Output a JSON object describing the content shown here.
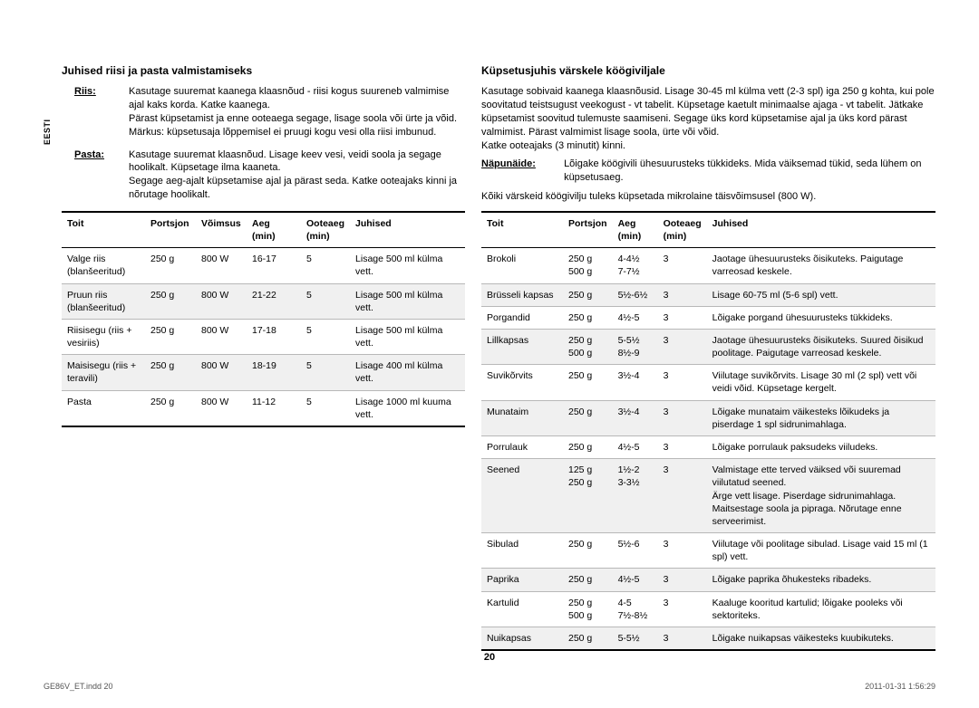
{
  "sidetab": "EESTI",
  "pagenum": "20",
  "footer_left": "GE86V_ET.indd   20",
  "footer_right": "2011-01-31      1:56:29",
  "left": {
    "heading": "Juhised riisi ja pasta valmistamiseks",
    "defs": [
      {
        "term": "Riis:",
        "body": "Kasutage suuremat kaanega klaasnõud - riisi kogus suureneb valmimise ajal kaks korda. Katke kaanega.\nPärast küpsetamist ja enne ooteaega segage, lisage soola või ürte ja võid.\nMärkus: küpsetusaja lõppemisel ei pruugi kogu vesi olla riisi imbunud."
      },
      {
        "term": "Pasta:",
        "body": "Kasutage suuremat klaasnõud. Lisage keev vesi, veidi soola ja segage hoolikalt. Küpsetage ilma kaaneta.\nSegage aeg-ajalt küpsetamise ajal ja pärast seda. Katke ooteajaks kinni ja nõrutage hoolikalt."
      }
    ],
    "table": {
      "columns": [
        "Toit",
        "Portsjon",
        "Võimsus",
        "Aeg (min)",
        "Ooteaeg (min)",
        "Juhised"
      ],
      "rows": [
        {
          "cells": [
            "Valge riis (blanšeeritud)",
            "250 g",
            "800 W",
            "16-17",
            "5",
            "Lisage 500 ml külma vett."
          ],
          "alt": false
        },
        {
          "cells": [
            "Pruun riis (blanšeeritud)",
            "250 g",
            "800 W",
            "21-22",
            "5",
            "Lisage 500 ml külma vett."
          ],
          "alt": true
        },
        {
          "cells": [
            "Riisisegu (riis + vesiriis)",
            "250 g",
            "800 W",
            "17-18",
            "5",
            "Lisage 500 ml külma vett."
          ],
          "alt": false
        },
        {
          "cells": [
            "Maisisegu (riis + teravili)",
            "250 g",
            "800 W",
            "18-19",
            "5",
            "Lisage 400 ml külma vett."
          ],
          "alt": true
        },
        {
          "cells": [
            "Pasta",
            "250 g",
            "800 W",
            "11-12",
            "5",
            "Lisage 1000 ml kuuma vett."
          ],
          "alt": false
        }
      ]
    }
  },
  "right": {
    "heading": "Küpsetusjuhis värskele köögiviljale",
    "body": "Kasutage sobivaid kaanega klaasnõusid. Lisage 30-45 ml külma vett (2-3 spl) iga 250 g kohta, kui pole soovitatud teistsugust veekogust - vt tabelit. Küpsetage kaetult minimaalse ajaga - vt tabelit. Jätkake küpsetamist soovitud tulemuste saamiseni. Segage üks kord küpsetamise ajal ja üks kord pärast valmimist. Pärast valmimist lisage soola, ürte või võid.\nKatke ooteajaks (3 minutit) kinni.",
    "hint_term": "Näpunäide:",
    "hint_body": "Lõigake köögivili ühesuurusteks tükkideks. Mida väiksemad tükid, seda lühem on küpsetusaeg.",
    "note": "Kõiki värskeid köögivilju tuleks küpsetada mikrolaine täisvõimsusel (800 W).",
    "table": {
      "columns": [
        "Toit",
        "Portsjon",
        "Aeg (min)",
        "Ooteaeg (min)",
        "Juhised"
      ],
      "rows": [
        {
          "cells": [
            "Brokoli",
            "250 g\n500 g",
            "4-4½\n7-7½",
            "3",
            "Jaotage ühesuurusteks õisikuteks. Paigutage varreosad keskele."
          ],
          "alt": false
        },
        {
          "cells": [
            "Brüsseli kapsas",
            "250 g",
            "5½-6½",
            "3",
            "Lisage 60-75 ml (5-6 spl) vett."
          ],
          "alt": true
        },
        {
          "cells": [
            "Porgandid",
            "250 g",
            "4½-5",
            "3",
            "Lõigake porgand ühesuurusteks tükkideks."
          ],
          "alt": false
        },
        {
          "cells": [
            "Lillkapsas",
            "250 g\n500 g",
            "5-5½\n8½-9",
            "3",
            "Jaotage ühesuurusteks õisikuteks. Suured õisikud poolitage. Paigutage varreosad keskele."
          ],
          "alt": true
        },
        {
          "cells": [
            "Suvikõrvits",
            "250 g",
            "3½-4",
            "3",
            "Viilutage suvikõrvits. Lisage 30 ml (2 spl) vett või veidi võid. Küpsetage kergelt."
          ],
          "alt": false
        },
        {
          "cells": [
            "Munataim",
            "250 g",
            "3½-4",
            "3",
            "Lõigake munataim väikesteks lõikudeks ja piserdage 1 spl sidrunimahlaga."
          ],
          "alt": true
        },
        {
          "cells": [
            "Porrulauk",
            "250 g",
            "4½-5",
            "3",
            "Lõigake porrulauk paksudeks viiludeks."
          ],
          "alt": false
        },
        {
          "cells": [
            "Seened",
            "125 g\n250 g",
            "1½-2\n3-3½",
            "3",
            "Valmistage ette terved väiksed või suuremad viilutatud seened.\nÄrge vett lisage. Piserdage sidrunimahlaga. Maitsestage soola ja pipraga. Nõrutage enne serveerimist."
          ],
          "alt": true
        },
        {
          "cells": [
            "Sibulad",
            "250 g",
            "5½-6",
            "3",
            "Viilutage või poolitage sibulad. Lisage vaid 15 ml (1 spl) vett."
          ],
          "alt": false
        },
        {
          "cells": [
            "Paprika",
            "250 g",
            "4½-5",
            "3",
            "Lõigake paprika õhukesteks ribadeks."
          ],
          "alt": true
        },
        {
          "cells": [
            "Kartulid",
            "250 g\n500 g",
            "4-5\n7½-8½",
            "3",
            "Kaaluge kooritud kartulid; lõigake pooleks või sektoriteks."
          ],
          "alt": false
        },
        {
          "cells": [
            "Nuikapsas",
            "250 g",
            "5-5½",
            "3",
            "Lõigake nuikapsas väikesteks kuubikuteks."
          ],
          "alt": true
        }
      ]
    }
  }
}
